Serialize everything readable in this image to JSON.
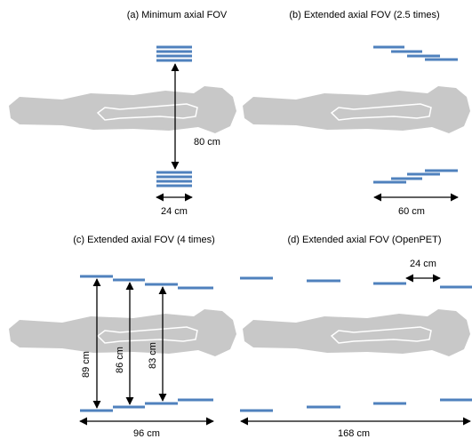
{
  "panels": [
    {
      "title": "(a) Minimum axial FOV",
      "labels": [
        "80 cm",
        "24 cm"
      ]
    },
    {
      "title": "(b) Extended axial FOV (2.5 times)",
      "labels": [
        "60 cm"
      ]
    },
    {
      "title": "(c) Extended axial FOV (4 times)",
      "labels": [
        "89 cm",
        "86 cm",
        "83 cm",
        "96 cm"
      ]
    },
    {
      "title": "(d) Extended axial FOV (OpenPET)",
      "labels": [
        "24 cm",
        "168 cm"
      ]
    }
  ]
}
